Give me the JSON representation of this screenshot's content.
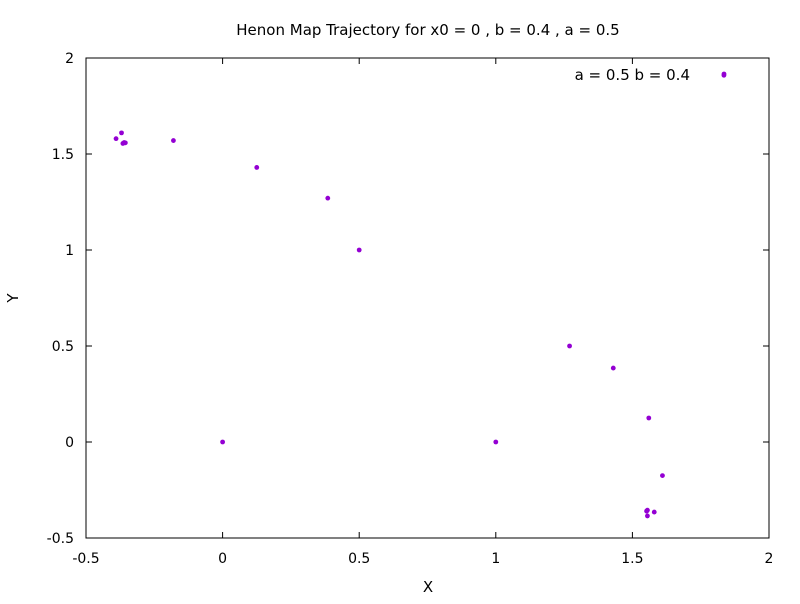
{
  "chart_data": {
    "type": "scatter",
    "title": "Henon Map Trajectory for x0 = 0 , b = 0.4 , a = 0.5",
    "xlabel": "X",
    "ylabel": "Y",
    "xlim": [
      -0.5,
      2
    ],
    "ylim": [
      -0.5,
      2
    ],
    "xticks": [
      "-0.5",
      "0",
      "0.5",
      "1",
      "1.5",
      "2"
    ],
    "yticks": [
      "-0.5",
      "0",
      "0.5",
      "1",
      "1.5",
      "2"
    ],
    "xtick_values": [
      -0.5,
      0,
      0.5,
      1,
      1.5,
      2
    ],
    "ytick_values": [
      -0.5,
      0,
      0.5,
      1,
      1.5,
      2
    ],
    "grid": false,
    "legend_position": "top-right",
    "series": [
      {
        "name": "a = 0.5 b = 0.4",
        "color": "#9400d3",
        "points": [
          {
            "x": 0.0,
            "y": 0.0
          },
          {
            "x": 1.0,
            "y": 0.0
          },
          {
            "x": 0.5,
            "y": 1.0
          },
          {
            "x": 1.27,
            "y": 0.5
          },
          {
            "x": 0.385,
            "y": 1.27
          },
          {
            "x": 1.43,
            "y": 0.385
          },
          {
            "x": 0.125,
            "y": 1.43
          },
          {
            "x": 1.56,
            "y": 0.125
          },
          {
            "x": -0.18,
            "y": 1.57
          },
          {
            "x": 1.61,
            "y": -0.175
          },
          {
            "x": -0.39,
            "y": 1.58
          },
          {
            "x": 1.58,
            "y": -0.365
          },
          {
            "x": -0.37,
            "y": 1.61
          },
          {
            "x": 1.555,
            "y": -0.385
          },
          {
            "x": -0.365,
            "y": 1.555
          },
          {
            "x": 1.555,
            "y": -0.355
          },
          {
            "x": -0.36,
            "y": 1.56
          },
          {
            "x": 1.552,
            "y": -0.36
          },
          {
            "x": -0.356,
            "y": 1.558
          },
          {
            "x": 1.553,
            "y": -0.358
          },
          {
            "x": 1.835,
            "y": 1.91
          }
        ]
      }
    ]
  }
}
